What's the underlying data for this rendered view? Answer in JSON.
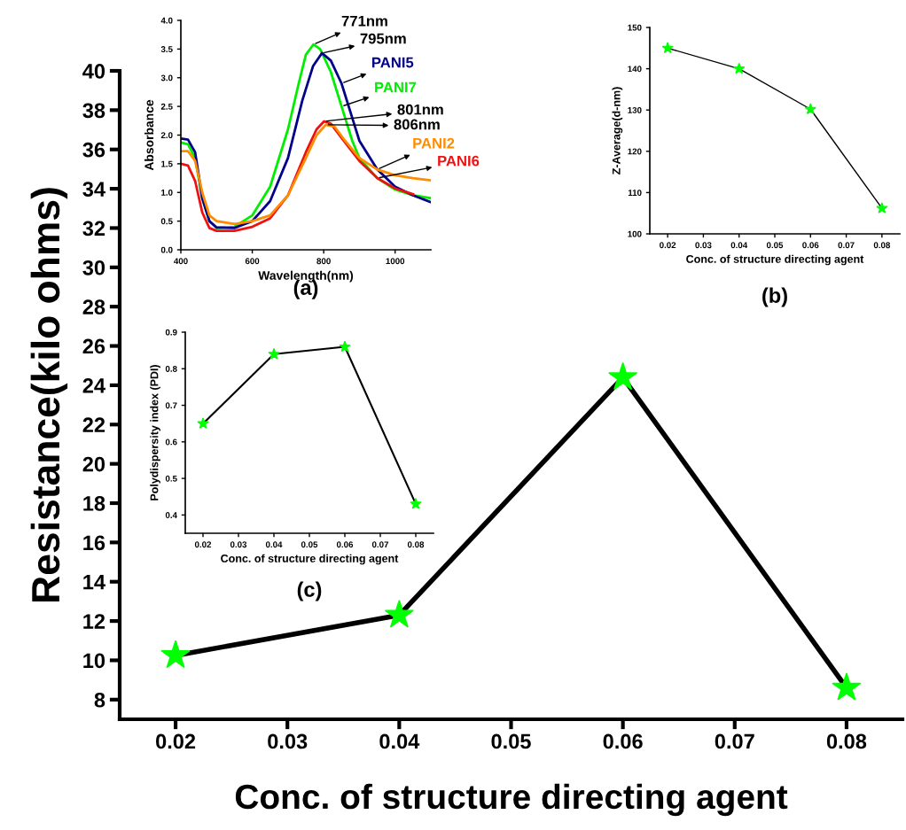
{
  "chart_data": [
    {
      "type": "line",
      "xlabel": "Conc. of structure directing agent",
      "ylabel": "Resistance(kilo ohms)",
      "x": [
        0.02,
        0.04,
        0.06,
        0.08
      ],
      "marker": "star",
      "line_style": "solid",
      "series": [
        {
          "color": "#00ff00",
          "values": [
            10.25,
            12.3,
            24.4,
            8.6
          ]
        }
      ],
      "xlim": [
        0.015,
        0.085
      ],
      "ylim": [
        7,
        40
      ],
      "xticks": [
        0.02,
        0.03,
        0.04,
        0.05,
        0.06,
        0.07,
        0.08
      ],
      "yticks": [
        8,
        10,
        12,
        14,
        16,
        18,
        20,
        22,
        24,
        26,
        28,
        30,
        32,
        34,
        36,
        38,
        40
      ]
    },
    {
      "type": "line",
      "xlabel": "Wavelength(nm)",
      "ylabel": "Absorbance",
      "line_style": "solid",
      "series": [
        {
          "name": "PANI7",
          "color": "#00ee00",
          "x": [
            400,
            420,
            440,
            460,
            480,
            500,
            550,
            600,
            650,
            700,
            730,
            750,
            771,
            790,
            820,
            850,
            880,
            900,
            950,
            1000,
            1050,
            1100
          ],
          "values": [
            1.87,
            1.84,
            1.6,
            0.9,
            0.5,
            0.38,
            0.4,
            0.6,
            1.1,
            2.1,
            2.9,
            3.4,
            3.58,
            3.5,
            3.1,
            2.5,
            1.9,
            1.6,
            1.25,
            1.05,
            0.95,
            0.9
          ]
        },
        {
          "name": "PANI5",
          "color": "#00008b",
          "x": [
            400,
            420,
            440,
            460,
            480,
            500,
            550,
            600,
            650,
            700,
            740,
            770,
            795,
            820,
            850,
            880,
            900,
            950,
            1000,
            1050,
            1100
          ],
          "values": [
            1.94,
            1.92,
            1.7,
            0.9,
            0.5,
            0.39,
            0.38,
            0.5,
            0.85,
            1.6,
            2.6,
            3.2,
            3.43,
            3.3,
            2.9,
            2.3,
            1.9,
            1.4,
            1.1,
            0.95,
            0.83
          ]
        },
        {
          "name": "PANI6",
          "color": "#ee1111",
          "x": [
            400,
            420,
            440,
            460,
            480,
            500,
            550,
            600,
            650,
            700,
            750,
            780,
            801,
            820,
            850,
            900,
            950,
            1000,
            1050
          ],
          "values": [
            1.5,
            1.47,
            1.2,
            0.65,
            0.38,
            0.33,
            0.33,
            0.4,
            0.55,
            0.95,
            1.7,
            2.1,
            2.24,
            2.2,
            1.95,
            1.55,
            1.25,
            1.07,
            0.97
          ]
        },
        {
          "name": "PANI2",
          "color": "#ff8c00",
          "x": [
            400,
            420,
            440,
            460,
            480,
            500,
            550,
            600,
            650,
            700,
            750,
            780,
            806,
            830,
            860,
            900,
            950,
            1000,
            1050,
            1100
          ],
          "values": [
            1.72,
            1.72,
            1.55,
            1.0,
            0.6,
            0.5,
            0.45,
            0.5,
            0.6,
            0.95,
            1.6,
            2.0,
            2.18,
            2.15,
            1.9,
            1.6,
            1.4,
            1.3,
            1.25,
            1.21
          ]
        }
      ],
      "annotations": [
        {
          "text": "771nm",
          "x": 771,
          "y": 3.58
        },
        {
          "text": "795nm",
          "x": 795,
          "y": 3.43
        },
        {
          "text": "801nm",
          "x": 801,
          "y": 2.24
        },
        {
          "text": "806nm",
          "x": 806,
          "y": 2.18
        },
        "(a)"
      ],
      "xlim": [
        400,
        1100
      ],
      "ylim": [
        0,
        4
      ],
      "xticks": [
        400,
        600,
        800,
        1000
      ],
      "yticks": [
        {
          "value": 0,
          "label": "0.0"
        },
        {
          "value": 0.5,
          "label": "0.5"
        },
        {
          "value": 1,
          "label": "1.0"
        },
        {
          "value": 1.5,
          "label": "1.5"
        },
        {
          "value": 2,
          "label": "2.0"
        },
        {
          "value": 2.5,
          "label": "2.5"
        },
        {
          "value": 3,
          "label": "3.0"
        },
        {
          "value": 3.5,
          "label": "3.5"
        },
        {
          "value": 4,
          "label": "4.0"
        }
      ]
    },
    {
      "type": "line",
      "xlabel": "Conc. of structure directing agent",
      "ylabel": "Z-Average(d-nm)",
      "x": [
        0.02,
        0.04,
        0.06,
        0.08
      ],
      "marker": "star",
      "line_style": "solid",
      "series": [
        {
          "color": "#00ff00",
          "values": [
            145,
            140,
            130.2,
            106.2
          ]
        }
      ],
      "annotations": [
        "(b)"
      ],
      "xlim": [
        0.015,
        0.085
      ],
      "ylim": [
        100,
        150
      ],
      "xticks": [
        0.02,
        0.03,
        0.04,
        0.05,
        0.06,
        0.07,
        0.08
      ],
      "yticks": [
        100,
        110,
        120,
        130,
        140,
        150
      ]
    },
    {
      "type": "line",
      "xlabel": "Conc. of structure directing agent",
      "ylabel": "Polydispersity index (PDI)",
      "x": [
        0.02,
        0.04,
        0.06,
        0.08
      ],
      "marker": "star",
      "line_style": "solid",
      "series": [
        {
          "color": "#00ff00",
          "values": [
            0.65,
            0.84,
            0.86,
            0.43
          ]
        }
      ],
      "annotations": [
        "(c)"
      ],
      "xlim": [
        0.015,
        0.085
      ],
      "ylim": [
        0.35,
        0.9
      ],
      "xticks": [
        0.02,
        0.03,
        0.04,
        0.05,
        0.06,
        0.07,
        0.08
      ],
      "yticks": [
        0.4,
        0.5,
        0.6,
        0.7,
        0.8,
        0.9
      ]
    }
  ]
}
